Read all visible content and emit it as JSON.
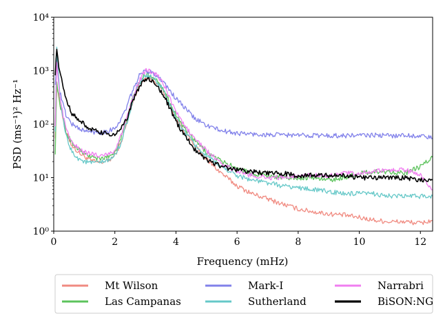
{
  "chart_data": {
    "type": "line",
    "xlabel": "Frequency (mHz)",
    "ylabel": "PSD (ms⁻¹)² Hz⁻¹",
    "xlim": [
      0,
      12.4
    ],
    "ylim": [
      1,
      10000
    ],
    "yscale": "log",
    "xticks": [
      0,
      2,
      4,
      6,
      8,
      10,
      12
    ],
    "yticks": [
      {
        "value": 1,
        "label": "10⁰"
      },
      {
        "value": 10,
        "label": "10¹"
      },
      {
        "value": 100,
        "label": "10²"
      },
      {
        "value": 1000,
        "label": "10³"
      },
      {
        "value": 10000,
        "label": "10⁴"
      }
    ],
    "grid": false,
    "legend_position": "below",
    "legend_columns": 3,
    "series": [
      {
        "name": "Mt Wilson",
        "color": "#f08a80",
        "x": [
          0.05,
          0.1,
          0.2,
          0.4,
          0.6,
          0.8,
          1.0,
          1.2,
          1.5,
          1.8,
          2.0,
          2.2,
          2.4,
          2.6,
          2.8,
          3.0,
          3.2,
          3.4,
          3.6,
          3.8,
          4.0,
          4.3,
          4.6,
          5.0,
          5.5,
          6.0,
          6.5,
          7.0,
          7.5,
          8.0,
          8.5,
          9.0,
          9.5,
          10.0,
          10.5,
          11.0,
          11.5,
          12.0,
          12.4
        ],
        "y": [
          60,
          500,
          250,
          70,
          40,
          30,
          25,
          21,
          19,
          21,
          26,
          45,
          110,
          280,
          550,
          750,
          700,
          600,
          400,
          220,
          130,
          70,
          40,
          22,
          12,
          7,
          5,
          4,
          3.2,
          2.6,
          2.3,
          2.1,
          2.0,
          1.8,
          1.6,
          1.5,
          1.5,
          1.4,
          1.6
        ]
      },
      {
        "name": "Las Campanas",
        "color": "#5cc35c",
        "x": [
          0.05,
          0.1,
          0.2,
          0.4,
          0.6,
          0.8,
          1.0,
          1.2,
          1.5,
          1.8,
          2.0,
          2.2,
          2.4,
          2.6,
          2.8,
          3.0,
          3.2,
          3.4,
          3.6,
          3.8,
          4.0,
          4.3,
          4.6,
          5.0,
          5.5,
          6.0,
          6.5,
          7.0,
          7.5,
          8.0,
          8.5,
          9.0,
          9.5,
          10.0,
          10.5,
          11.0,
          11.5,
          12.0,
          12.4
        ],
        "y": [
          30,
          600,
          250,
          70,
          45,
          35,
          28,
          25,
          22,
          25,
          30,
          55,
          130,
          320,
          600,
          850,
          800,
          650,
          450,
          250,
          150,
          80,
          50,
          30,
          20,
          15,
          12,
          11,
          10,
          10,
          10,
          9,
          10,
          12,
          13,
          13,
          12,
          16,
          24
        ]
      },
      {
        "name": "Mark-I",
        "color": "#8080ea",
        "x": [
          0.05,
          0.1,
          0.2,
          0.4,
          0.6,
          0.8,
          1.0,
          1.2,
          1.5,
          1.8,
          2.0,
          2.2,
          2.4,
          2.6,
          2.8,
          3.0,
          3.2,
          3.4,
          3.6,
          3.8,
          4.0,
          4.3,
          4.6,
          5.0,
          5.5,
          6.0,
          6.5,
          7.0,
          7.5,
          8.0,
          8.5,
          9.0,
          9.5,
          10.0,
          10.5,
          11.0,
          11.5,
          12.0,
          12.4
        ],
        "y": [
          600,
          1500,
          400,
          150,
          100,
          85,
          75,
          72,
          70,
          75,
          85,
          120,
          220,
          450,
          800,
          1000,
          950,
          800,
          600,
          420,
          300,
          200,
          130,
          95,
          75,
          68,
          65,
          63,
          63,
          62,
          62,
          61,
          61,
          62,
          62,
          61,
          62,
          60,
          55
        ]
      },
      {
        "name": "Sutherland",
        "color": "#66c8c8",
        "x": [
          0.05,
          0.1,
          0.2,
          0.4,
          0.6,
          0.8,
          1.0,
          1.2,
          1.5,
          1.8,
          2.0,
          2.2,
          2.4,
          2.6,
          2.8,
          3.0,
          3.2,
          3.4,
          3.6,
          3.8,
          4.0,
          4.3,
          4.6,
          5.0,
          5.5,
          6.0,
          6.5,
          7.0,
          7.5,
          8.0,
          8.5,
          9.0,
          9.5,
          10.0,
          10.5,
          11.0,
          11.5,
          12.0,
          12.4
        ],
        "y": [
          80,
          3000,
          300,
          60,
          30,
          23,
          20,
          19,
          19,
          21,
          26,
          45,
          110,
          290,
          560,
          800,
          750,
          600,
          420,
          230,
          130,
          70,
          42,
          25,
          16,
          11,
          9,
          8,
          7,
          6.5,
          6,
          5.5,
          5,
          5,
          5,
          4.5,
          4.5,
          4.5,
          4.5
        ]
      },
      {
        "name": "Narrabri",
        "color": "#f07ef0",
        "x": [
          0.05,
          0.1,
          0.2,
          0.4,
          0.6,
          0.8,
          1.0,
          1.2,
          1.5,
          1.8,
          2.0,
          2.2,
          2.4,
          2.6,
          2.8,
          3.0,
          3.2,
          3.4,
          3.6,
          3.8,
          4.0,
          4.3,
          4.6,
          5.0,
          5.5,
          6.0,
          6.5,
          7.0,
          7.5,
          8.0,
          8.5,
          9.0,
          9.5,
          10.0,
          10.5,
          11.0,
          11.5,
          12.0,
          12.4
        ],
        "y": [
          100,
          1500,
          300,
          80,
          45,
          35,
          30,
          28,
          26,
          28,
          32,
          60,
          140,
          350,
          650,
          1000,
          950,
          800,
          550,
          300,
          170,
          90,
          55,
          32,
          18,
          13,
          11,
          10,
          10,
          11,
          11,
          11,
          12,
          12,
          13,
          14,
          14,
          11,
          6
        ]
      },
      {
        "name": "BiSON:NG",
        "color": "#000000",
        "x": [
          0.05,
          0.1,
          0.2,
          0.4,
          0.6,
          0.8,
          1.0,
          1.2,
          1.5,
          1.8,
          2.0,
          2.2,
          2.4,
          2.6,
          2.8,
          3.0,
          3.2,
          3.4,
          3.6,
          3.8,
          4.0,
          4.3,
          4.6,
          5.0,
          5.5,
          6.0,
          6.5,
          7.0,
          7.5,
          8.0,
          8.5,
          9.0,
          9.5,
          10.0,
          10.5,
          11.0,
          11.5,
          12.0,
          12.4
        ],
        "y": [
          900,
          2500,
          900,
          300,
          160,
          120,
          100,
          80,
          70,
          65,
          65,
          80,
          130,
          280,
          500,
          700,
          650,
          500,
          350,
          200,
          110,
          60,
          35,
          22,
          16,
          14,
          13,
          12,
          12,
          11,
          11,
          11,
          11,
          10,
          10,
          10,
          10,
          9,
          9
        ]
      }
    ]
  }
}
